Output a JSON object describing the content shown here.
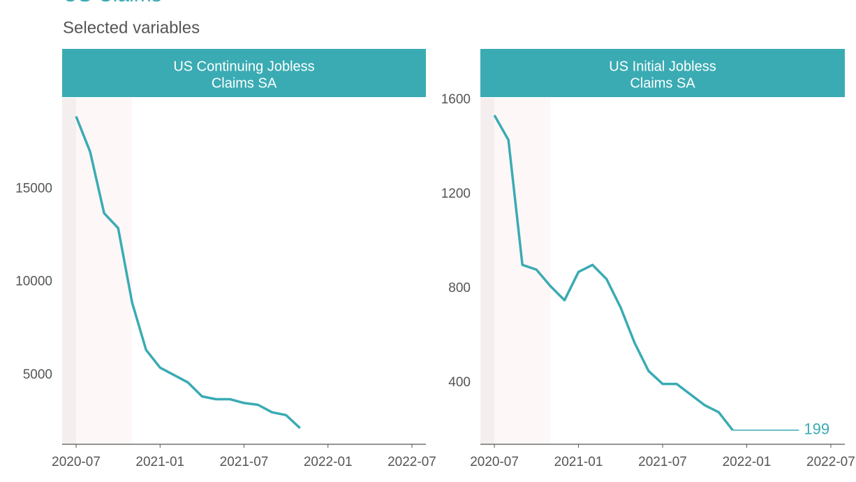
{
  "title": "US Claims",
  "subtitle": "Selected variables",
  "chart_data": [
    {
      "type": "line",
      "title_lines": [
        "US Continuing Jobless",
        "Claims SA"
      ],
      "color": "#3aabb3",
      "x": [
        "2020-07",
        "2020-08",
        "2020-09",
        "2020-10",
        "2020-11",
        "2020-12",
        "2021-01",
        "2021-02",
        "2021-03",
        "2021-04",
        "2021-05",
        "2021-06",
        "2021-07",
        "2021-08",
        "2021-09",
        "2021-10",
        "2021-11"
      ],
      "values": [
        18900,
        17000,
        13700,
        12900,
        8900,
        6350,
        5400,
        5000,
        4600,
        3850,
        3700,
        3700,
        3500,
        3400,
        3000,
        2850,
        2150
      ],
      "xlim": [
        "2020-06",
        "2022-08"
      ],
      "xticks": [
        "2020-07",
        "2021-01",
        "2021-07",
        "2022-01",
        "2022-07"
      ],
      "ylim": [
        1280,
        19900
      ],
      "yticks": [
        5000,
        10000,
        15000
      ],
      "shaded_regions": [
        {
          "start": "2020-06",
          "end": "2020-07",
          "color": "#f5eeef"
        },
        {
          "start": "2020-07",
          "end": "2020-11",
          "color": "#fdf7f7"
        }
      ]
    },
    {
      "type": "line",
      "title_lines": [
        "US Initial Jobless",
        "Claims SA"
      ],
      "color": "#3aabb3",
      "x": [
        "2020-07",
        "2020-08",
        "2020-09",
        "2020-10",
        "2020-11",
        "2020-12",
        "2021-01",
        "2021-02",
        "2021-03",
        "2021-04",
        "2021-05",
        "2021-06",
        "2021-07",
        "2021-08",
        "2021-09",
        "2021-10",
        "2021-11",
        "2021-12"
      ],
      "values": [
        1535,
        1430,
        900,
        880,
        810,
        750,
        870,
        900,
        840,
        720,
        570,
        450,
        395,
        395,
        350,
        305,
        275,
        199
      ],
      "xlim": [
        "2020-06",
        "2022-08"
      ],
      "xticks": [
        "2020-07",
        "2021-01",
        "2021-07",
        "2022-01",
        "2022-07"
      ],
      "ylim": [
        139,
        1609
      ],
      "yticks": [
        400,
        800,
        1200,
        1600
      ],
      "last_value_label": true,
      "shaded_regions": [
        {
          "start": "2020-06",
          "end": "2020-07",
          "color": "#f5eeef"
        },
        {
          "start": "2020-07",
          "end": "2020-11",
          "color": "#fdf7f7"
        }
      ]
    }
  ]
}
